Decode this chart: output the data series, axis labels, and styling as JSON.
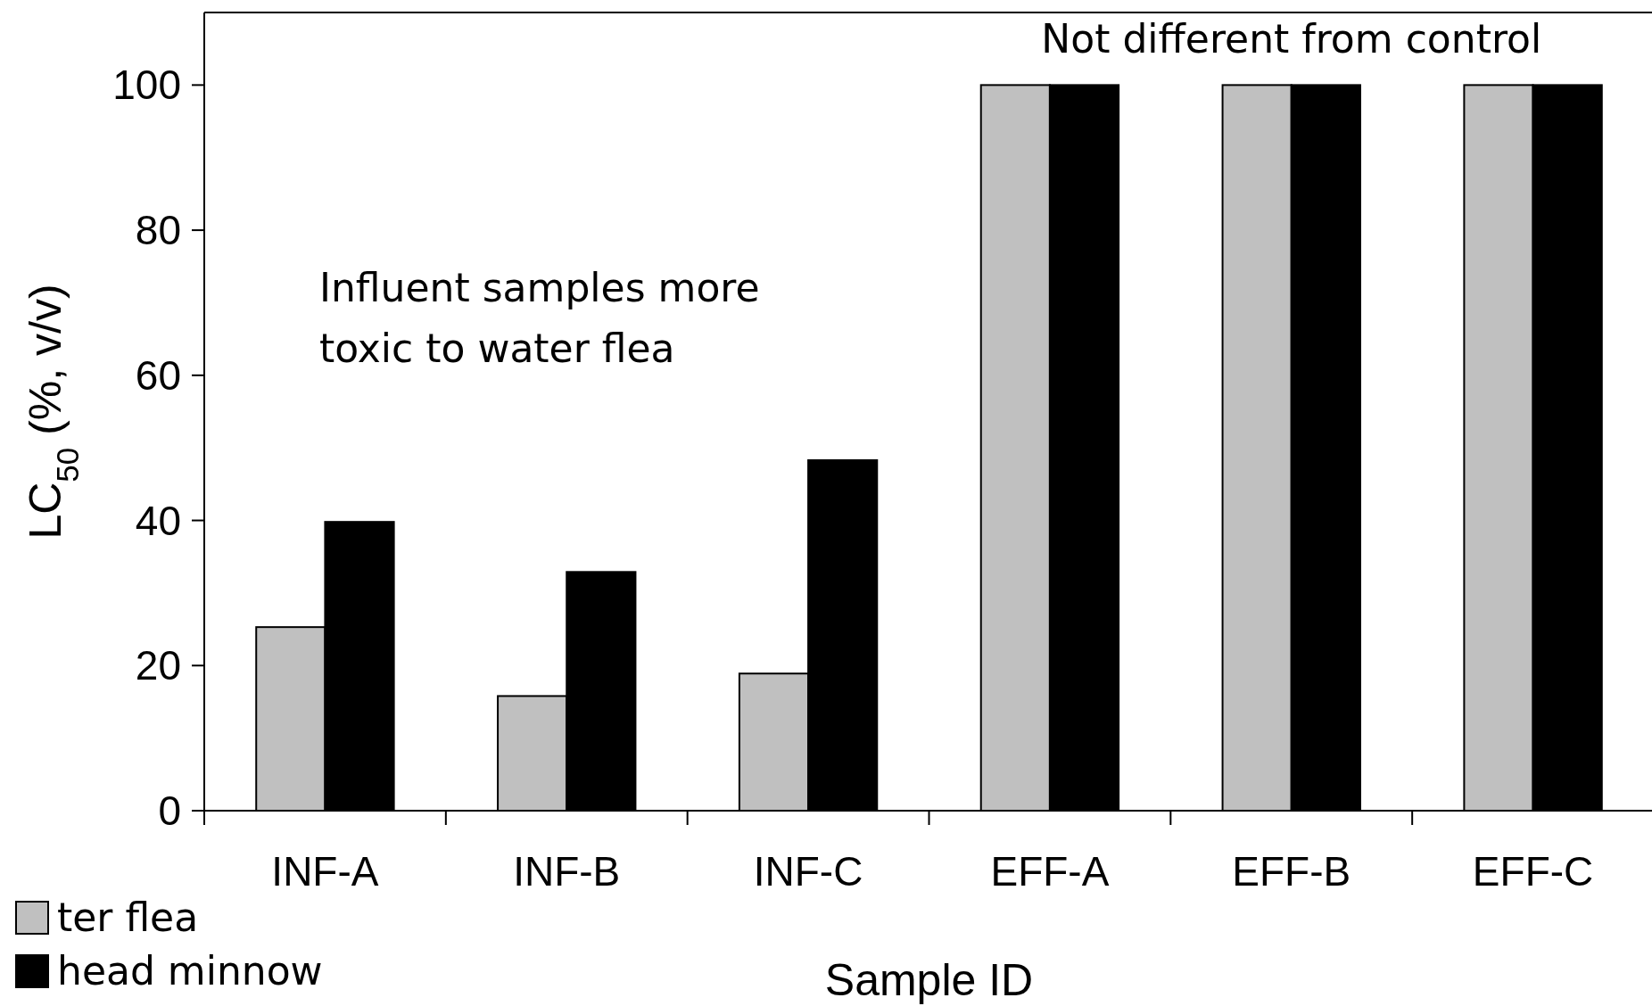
{
  "chart_data": {
    "type": "bar",
    "xlabel": "Sample ID",
    "ylabel": "LC$_{50}$ (%, v/v)",
    "categories": [
      "INF-A",
      "INF-B",
      "INF-C",
      "EFF-A",
      "EFF-B",
      "EFF-C"
    ],
    "series": [
      {
        "name": "ter flea",
        "color": "#c0c0c0",
        "values": [
          25.3,
          15.8,
          18.9,
          100,
          100,
          100
        ]
      },
      {
        "name": "head minnow",
        "color": "#000000",
        "values": [
          39.8,
          32.9,
          48.3,
          100,
          100,
          100
        ]
      }
    ],
    "ylim": [
      0,
      110
    ],
    "yticks": [
      0,
      20,
      40,
      60,
      80,
      100
    ],
    "grid": false,
    "legend": "bottom left",
    "annotations": [
      "Not different from control",
      "Influent samples more toxic to water flea"
    ]
  }
}
